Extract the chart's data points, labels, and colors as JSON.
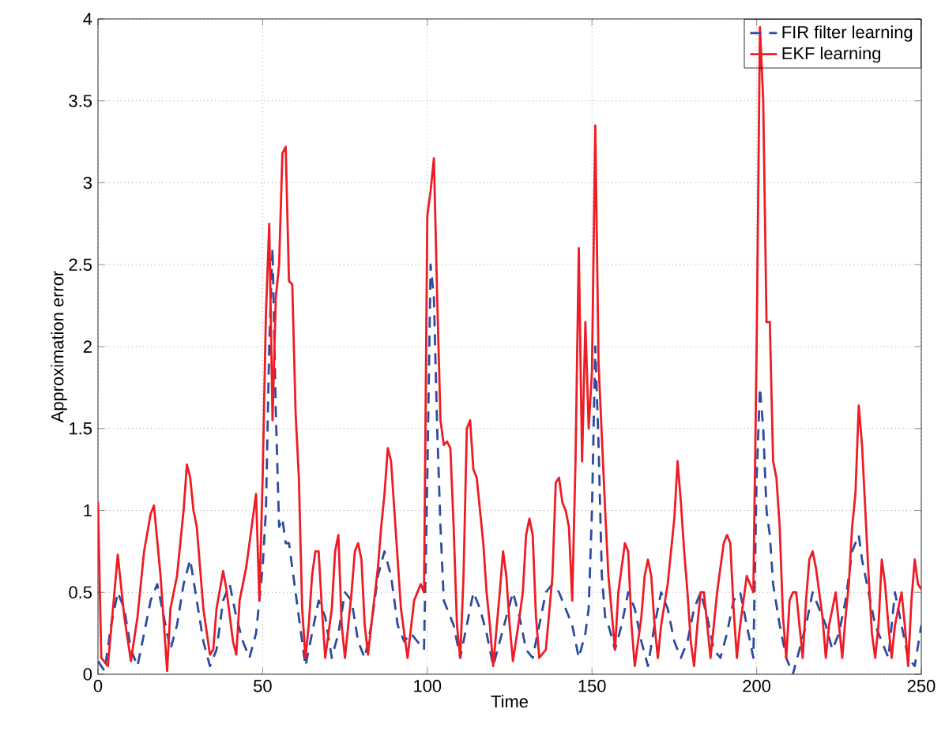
{
  "chart_data": {
    "type": "line",
    "xlabel": "Time",
    "ylabel": "Approximation error",
    "xlim": [
      0,
      250
    ],
    "ylim": [
      0,
      4
    ],
    "xticks": [
      0,
      50,
      100,
      150,
      200,
      250
    ],
    "yticks": [
      0,
      0.5,
      1,
      1.5,
      2,
      2.5,
      3,
      3.5,
      4
    ],
    "grid": true,
    "legend": "top right",
    "marker": "none",
    "series": [
      {
        "name": "FIR filter learning",
        "color": "#2b4ba0",
        "line_style": "dashed",
        "x": [
          0,
          2,
          4,
          6,
          8,
          10,
          12,
          14,
          16,
          18,
          20,
          22,
          24,
          26,
          28,
          30,
          32,
          34,
          36,
          38,
          40,
          42,
          44,
          46,
          48,
          50,
          51,
          52,
          53,
          54,
          55,
          56,
          57,
          58,
          60,
          62,
          63,
          65,
          67,
          69,
          71,
          73,
          75,
          77,
          79,
          81,
          83,
          85,
          87,
          89,
          91,
          93,
          95,
          97,
          99,
          100,
          101,
          102,
          103,
          104,
          105,
          106,
          108,
          110,
          112,
          114,
          116,
          118,
          120,
          122,
          124,
          126,
          128,
          130,
          132,
          134,
          136,
          138,
          140,
          142,
          144,
          146,
          148,
          149,
          150,
          151,
          152,
          153,
          154,
          155,
          157,
          159,
          161,
          163,
          165,
          167,
          169,
          171,
          173,
          175,
          177,
          179,
          181,
          183,
          185,
          187,
          189,
          191,
          193,
          195,
          197,
          199,
          200,
          201,
          202,
          203,
          204,
          205,
          207,
          209,
          211,
          213,
          215,
          217,
          219,
          221,
          223,
          225,
          227,
          229,
          231,
          232,
          234,
          236,
          238,
          240,
          242,
          244,
          246,
          248,
          250
        ],
        "values": [
          0.08,
          0.02,
          0.3,
          0.5,
          0.4,
          0.15,
          0.05,
          0.25,
          0.45,
          0.55,
          0.35,
          0.15,
          0.3,
          0.55,
          0.7,
          0.45,
          0.2,
          0.05,
          0.15,
          0.45,
          0.55,
          0.35,
          0.2,
          0.1,
          0.25,
          0.65,
          1.0,
          2.0,
          2.6,
          1.6,
          0.9,
          0.95,
          0.8,
          0.8,
          0.5,
          0.2,
          0.05,
          0.25,
          0.45,
          0.35,
          0.1,
          0.25,
          0.5,
          0.45,
          0.2,
          0.1,
          0.3,
          0.6,
          0.75,
          0.6,
          0.3,
          0.2,
          0.25,
          0.2,
          0.15,
          1.2,
          2.5,
          2.3,
          1.5,
          0.9,
          0.45,
          0.4,
          0.3,
          0.1,
          0.3,
          0.5,
          0.4,
          0.25,
          0.05,
          0.2,
          0.35,
          0.5,
          0.35,
          0.15,
          0.1,
          0.3,
          0.5,
          0.55,
          0.5,
          0.4,
          0.3,
          0.1,
          0.25,
          0.4,
          1.0,
          2.0,
          1.4,
          0.6,
          0.35,
          0.3,
          0.15,
          0.3,
          0.5,
          0.4,
          0.2,
          0.05,
          0.3,
          0.5,
          0.4,
          0.2,
          0.1,
          0.2,
          0.4,
          0.5,
          0.35,
          0.15,
          0.1,
          0.25,
          0.45,
          0.5,
          0.3,
          0.1,
          1.2,
          1.75,
          1.5,
          1.0,
          0.85,
          0.55,
          0.3,
          0.1,
          0.0,
          0.15,
          0.3,
          0.5,
          0.4,
          0.3,
          0.15,
          0.25,
          0.45,
          0.75,
          0.85,
          0.7,
          0.5,
          0.3,
          0.2,
          0.1,
          0.5,
          0.3,
          0.1,
          0.05,
          0.3
        ]
      },
      {
        "name": "EKF learning",
        "color": "#ee1c25",
        "line_style": "solid",
        "x": [
          0,
          1,
          3,
          5,
          6,
          8,
          10,
          12,
          14,
          16,
          17,
          19,
          21,
          22,
          24,
          26,
          27,
          28,
          29,
          30,
          32,
          34,
          35,
          36,
          38,
          39,
          41,
          42,
          43,
          44,
          45,
          47,
          48,
          49,
          50,
          51,
          52,
          53,
          54,
          55,
          56,
          57,
          58,
          59,
          60,
          61,
          62,
          63,
          64,
          65,
          66,
          67,
          68,
          69,
          71,
          72,
          73,
          74,
          75,
          77,
          78,
          79,
          80,
          81,
          82,
          83,
          85,
          86,
          87,
          88,
          89,
          90,
          92,
          94,
          96,
          98,
          99,
          100,
          101,
          102,
          103,
          104,
          105,
          106,
          107,
          108,
          109,
          110,
          111,
          112,
          113,
          114,
          115,
          117,
          118,
          119,
          120,
          122,
          123,
          124,
          125,
          126,
          128,
          129,
          130,
          131,
          132,
          133,
          134,
          136,
          138,
          139,
          140,
          141,
          142,
          143,
          144,
          145,
          146,
          147,
          148,
          149,
          150,
          151,
          152,
          153,
          154,
          155,
          157,
          158,
          160,
          161,
          162,
          163,
          165,
          166,
          167,
          168,
          169,
          170,
          171,
          173,
          175,
          176,
          177,
          178,
          179,
          180,
          181,
          182,
          183,
          184,
          185,
          186,
          188,
          190,
          191,
          192,
          193,
          194,
          195,
          197,
          199,
          200,
          201,
          202,
          203,
          204,
          205,
          206,
          207,
          208,
          209,
          210,
          211,
          212,
          213,
          214,
          215,
          216,
          217,
          218,
          219,
          220,
          221,
          222,
          223,
          224,
          225,
          226,
          227,
          228,
          229,
          230,
          231,
          232,
          233,
          234,
          235,
          236,
          237,
          238,
          239,
          240,
          241,
          242,
          244,
          245,
          246,
          247,
          248,
          249,
          250
        ],
        "values": [
          1.05,
          0.1,
          0.05,
          0.5,
          0.73,
          0.35,
          0.08,
          0.35,
          0.75,
          0.98,
          1.03,
          0.6,
          0.02,
          0.4,
          0.6,
          1.0,
          1.28,
          1.2,
          1.0,
          0.9,
          0.4,
          0.12,
          0.15,
          0.4,
          0.63,
          0.52,
          0.2,
          0.12,
          0.45,
          0.55,
          0.65,
          0.95,
          1.1,
          0.45,
          1.2,
          2.2,
          2.75,
          1.55,
          2.3,
          2.5,
          3.18,
          3.22,
          2.4,
          2.38,
          1.6,
          1.2,
          0.4,
          0.1,
          0.3,
          0.6,
          0.75,
          0.75,
          0.4,
          0.1,
          0.4,
          0.75,
          0.85,
          0.3,
          0.1,
          0.5,
          0.75,
          0.8,
          0.7,
          0.3,
          0.12,
          0.3,
          0.65,
          0.9,
          1.1,
          1.38,
          1.3,
          1.0,
          0.4,
          0.1,
          0.45,
          0.55,
          0.5,
          2.8,
          2.95,
          3.15,
          2.3,
          1.55,
          1.4,
          1.42,
          1.38,
          0.9,
          0.3,
          0.1,
          0.6,
          1.5,
          1.55,
          1.25,
          1.2,
          0.8,
          0.5,
          0.3,
          0.05,
          0.5,
          0.75,
          0.6,
          0.3,
          0.08,
          0.35,
          0.5,
          0.85,
          0.95,
          0.85,
          0.35,
          0.1,
          0.15,
          0.6,
          1.17,
          1.2,
          1.05,
          1.0,
          0.9,
          0.45,
          1.3,
          2.6,
          1.3,
          2.15,
          1.5,
          1.85,
          3.35,
          1.9,
          1.45,
          1.0,
          0.6,
          0.15,
          0.5,
          0.8,
          0.75,
          0.3,
          0.05,
          0.35,
          0.6,
          0.7,
          0.6,
          0.3,
          0.1,
          0.3,
          0.55,
          0.95,
          1.3,
          1.05,
          0.75,
          0.5,
          0.2,
          0.05,
          0.3,
          0.5,
          0.5,
          0.3,
          0.1,
          0.5,
          0.8,
          0.85,
          0.8,
          0.4,
          0.1,
          0.3,
          0.6,
          0.5,
          2.0,
          3.95,
          3.5,
          2.15,
          2.15,
          1.3,
          1.2,
          0.9,
          0.35,
          0.1,
          0.45,
          0.5,
          0.5,
          0.3,
          0.1,
          0.45,
          0.7,
          0.75,
          0.65,
          0.5,
          0.35,
          0.1,
          0.3,
          0.4,
          0.5,
          0.3,
          0.1,
          0.35,
          0.55,
          0.9,
          1.1,
          1.64,
          1.4,
          1.0,
          0.6,
          0.25,
          0.1,
          0.3,
          0.7,
          0.55,
          0.3,
          0.1,
          0.3,
          0.5,
          0.3,
          0.05,
          0.45,
          0.7,
          0.55,
          0.52
        ]
      }
    ]
  }
}
